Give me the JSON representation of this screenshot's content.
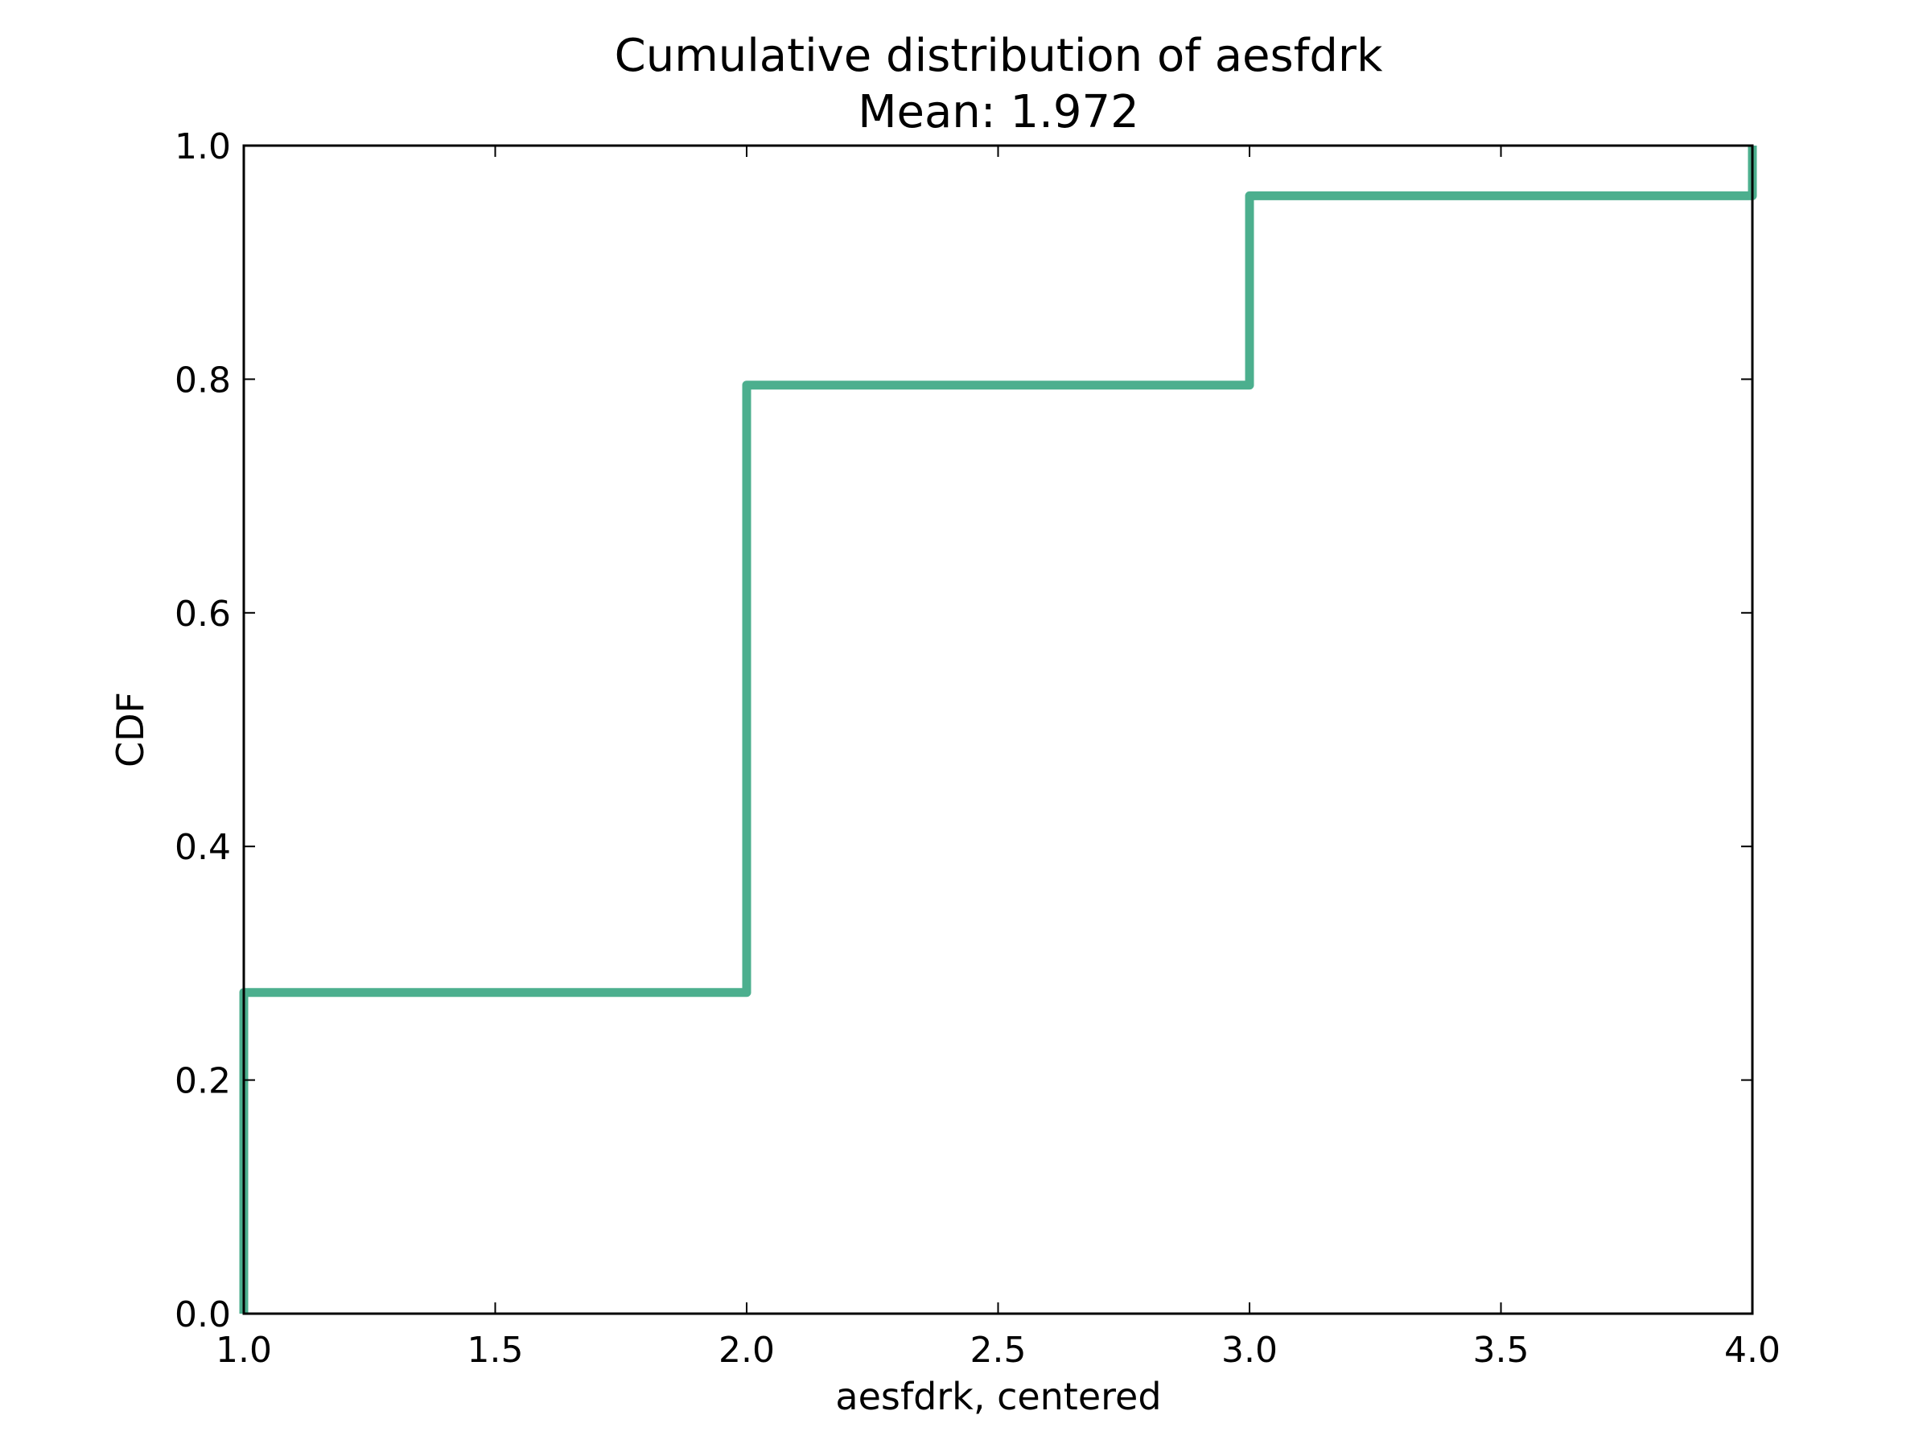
{
  "chart_data": {
    "type": "line",
    "step": "post",
    "title": "Cumulative distribution of aesfdrk",
    "subtitle": "Mean: 1.972",
    "xlabel": "aesfdrk, centered",
    "ylabel": "CDF",
    "xlim": [
      1.0,
      4.0
    ],
    "ylim": [
      0.0,
      1.0
    ],
    "xticks": [
      "1.0",
      "1.5",
      "2.0",
      "2.5",
      "3.0",
      "3.5",
      "4.0"
    ],
    "yticks": [
      "0.0",
      "0.2",
      "0.4",
      "0.6",
      "0.8",
      "1.0"
    ],
    "grid": false,
    "legend": "none",
    "series": [
      {
        "color": "#4caf8e",
        "x": [
          1.0,
          1.0,
          2.0,
          2.0,
          3.0,
          3.0,
          4.0,
          4.0
        ],
        "y": [
          0.0,
          0.275,
          0.275,
          0.795,
          0.795,
          0.957,
          0.957,
          1.0
        ]
      }
    ]
  }
}
